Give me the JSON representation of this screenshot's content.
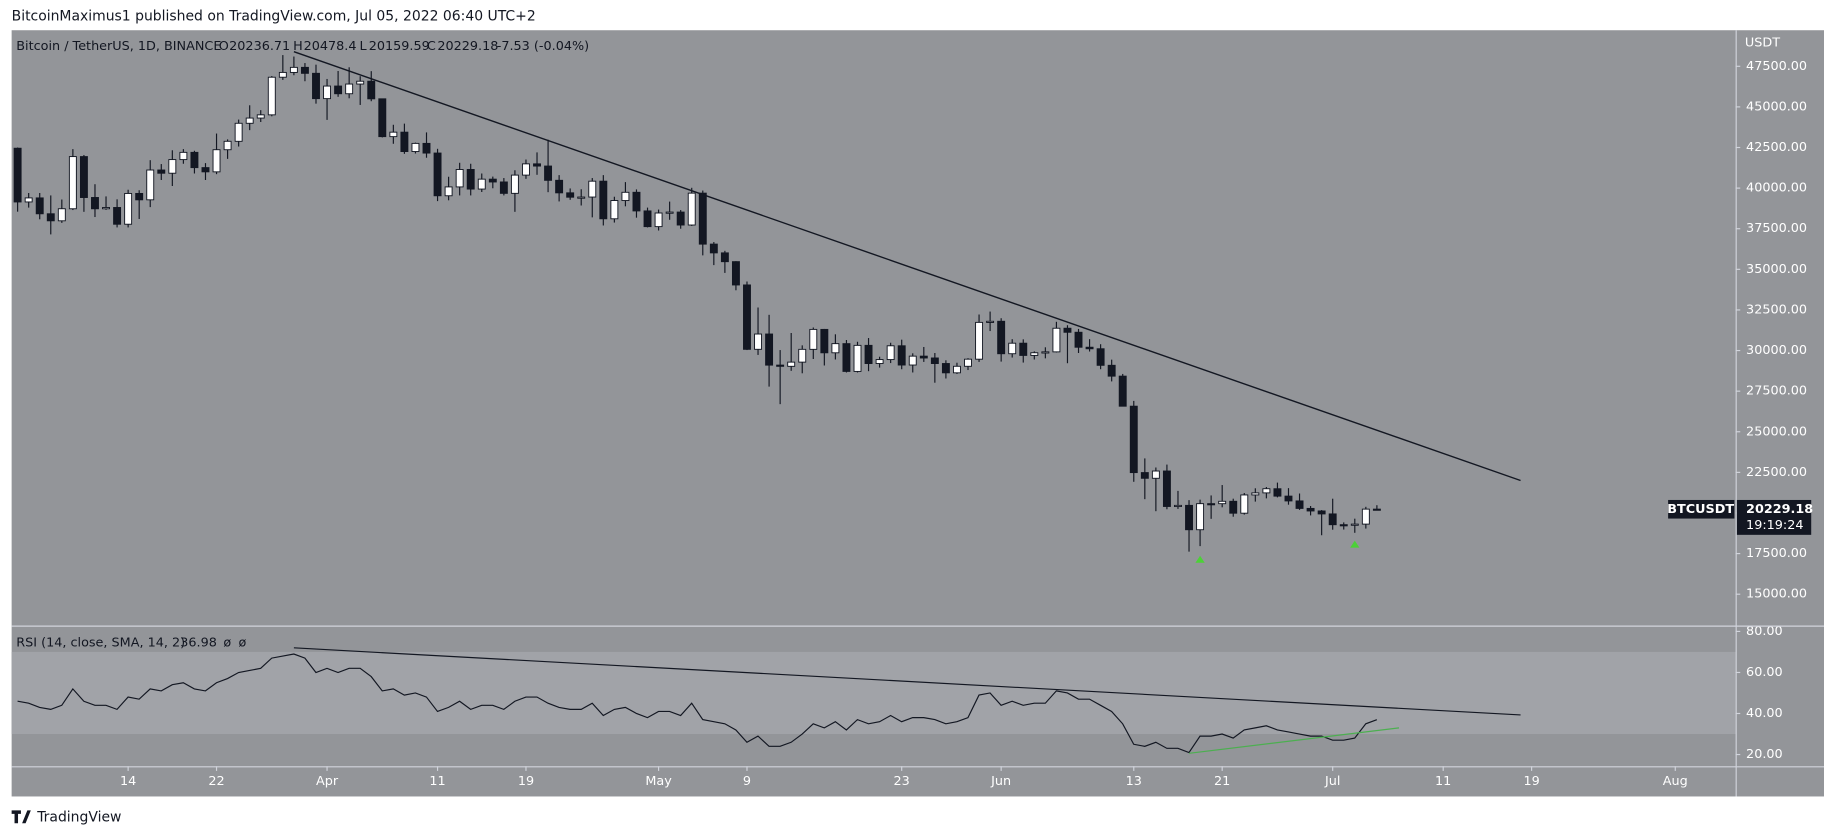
{
  "header": {
    "publisher": "BitcoinMaximus1 published on TradingView.com, Jul 05, 2022 06:40 UTC+2"
  },
  "footer": {
    "brand": "TradingView"
  },
  "chart_data": {
    "type": "candlestick",
    "title": "Bitcoin / TetherUS, 1D, BINANCE",
    "symbol": "BTCUSDT",
    "countdown": "19:19:24",
    "unit": "USDT",
    "ohlc_labels": [
      "O",
      "H",
      "L",
      "C"
    ],
    "change": -7.53,
    "change_percent": {
      "value": -0.04,
      "label": "(-0.04%)"
    },
    "up_color": "#ffffff",
    "down_color": "#131722",
    "background": "#939599",
    "x": [
      "2022-03-04",
      "2022-03-05",
      "2022-03-06",
      "2022-03-07",
      "2022-03-08",
      "2022-03-09",
      "2022-03-10",
      "2022-03-11",
      "2022-03-12",
      "2022-03-13",
      "2022-03-14",
      "2022-03-15",
      "2022-03-16",
      "2022-03-17",
      "2022-03-18",
      "2022-03-19",
      "2022-03-20",
      "2022-03-21",
      "2022-03-22",
      "2022-03-23",
      "2022-03-24",
      "2022-03-25",
      "2022-03-26",
      "2022-03-27",
      "2022-03-28",
      "2022-03-29",
      "2022-03-30",
      "2022-03-31",
      "2022-04-01",
      "2022-04-02",
      "2022-04-03",
      "2022-04-04",
      "2022-04-05",
      "2022-04-06",
      "2022-04-07",
      "2022-04-08",
      "2022-04-09",
      "2022-04-10",
      "2022-04-11",
      "2022-04-12",
      "2022-04-13",
      "2022-04-14",
      "2022-04-15",
      "2022-04-16",
      "2022-04-17",
      "2022-04-18",
      "2022-04-19",
      "2022-04-20",
      "2022-04-21",
      "2022-04-22",
      "2022-04-23",
      "2022-04-24",
      "2022-04-25",
      "2022-04-26",
      "2022-04-27",
      "2022-04-28",
      "2022-04-29",
      "2022-04-30",
      "2022-05-01",
      "2022-05-02",
      "2022-05-03",
      "2022-05-04",
      "2022-05-05",
      "2022-05-06",
      "2022-05-07",
      "2022-05-08",
      "2022-05-09",
      "2022-05-10",
      "2022-05-11",
      "2022-05-12",
      "2022-05-13",
      "2022-05-14",
      "2022-05-15",
      "2022-05-16",
      "2022-05-17",
      "2022-05-18",
      "2022-05-19",
      "2022-05-20",
      "2022-05-21",
      "2022-05-22",
      "2022-05-23",
      "2022-05-24",
      "2022-05-25",
      "2022-05-26",
      "2022-05-27",
      "2022-05-28",
      "2022-05-29",
      "2022-05-30",
      "2022-05-31",
      "2022-06-01",
      "2022-06-02",
      "2022-06-03",
      "2022-06-04",
      "2022-06-05",
      "2022-06-06",
      "2022-06-07",
      "2022-06-08",
      "2022-06-09",
      "2022-06-10",
      "2022-06-11",
      "2022-06-12",
      "2022-06-13",
      "2022-06-14",
      "2022-06-15",
      "2022-06-16",
      "2022-06-17",
      "2022-06-18",
      "2022-06-19",
      "2022-06-20",
      "2022-06-21",
      "2022-06-22",
      "2022-06-23",
      "2022-06-24",
      "2022-06-25",
      "2022-06-26",
      "2022-06-27",
      "2022-06-28",
      "2022-06-29",
      "2022-06-30",
      "2022-07-01",
      "2022-07-02",
      "2022-07-03",
      "2022-07-04",
      "2022-07-05"
    ],
    "open": [
      42455,
      39148,
      39397,
      38420,
      37988,
      38730,
      41941,
      39422,
      38729,
      38807,
      37777,
      39671,
      39280,
      41114,
      40917,
      41757,
      42201,
      41262,
      41002,
      42364,
      42882,
      43991,
      44313,
      44511,
      46827,
      47122,
      47434,
      47067,
      45510,
      46283,
      45811,
      46407,
      46580,
      45497,
      43170,
      43444,
      42252,
      42753,
      42158,
      39530,
      40074,
      41147,
      39942,
      40551,
      40378,
      39678,
      40801,
      41493,
      41358,
      40480,
      39709,
      39441,
      39450,
      40426,
      38112,
      39235,
      39742,
      38596,
      37630,
      38468,
      38525,
      37728,
      39690,
      36552,
      36013,
      35472,
      34038,
      30076,
      31017,
      29103,
      29029,
      29287,
      30074,
      31301,
      29862,
      30425,
      28715,
      30319,
      29201,
      29445,
      30293,
      29109,
      29655,
      29542,
      29201,
      28629,
      29031,
      29468,
      31734,
      31801,
      29805,
      30452,
      29700,
      29865,
      29919,
      31373,
      31125,
      30204,
      30110,
      29091,
      28424,
      26574,
      22487,
      22136,
      22583,
      20401,
      20468,
      18970,
      20574,
      20573,
      20719,
      19987,
      21110,
      21237,
      21492,
      21038,
      20742,
      20281,
      20124,
      19942,
      19279,
      19252,
      19315,
      20236.71
    ],
    "high": [
      42500,
      39700,
      39700,
      39550,
      39300,
      42400,
      42040,
      40240,
      39490,
      39310,
      39900,
      39870,
      41720,
      41480,
      42330,
      42400,
      42300,
      41540,
      43360,
      43000,
      44220,
      45100,
      44800,
      46900,
      48190,
      48100,
      47700,
      47600,
      46720,
      47210,
      47440,
      46890,
      47200,
      45510,
      43900,
      43970,
      42800,
      43430,
      42420,
      40700,
      41560,
      41500,
      40900,
      40710,
      40620,
      41100,
      41760,
      42200,
      42980,
      40800,
      39980,
      39930,
      40620,
      40800,
      39470,
      40370,
      39920,
      38800,
      38680,
      39170,
      38650,
      40020,
      39850,
      36680,
      36140,
      35500,
      34250,
      32650,
      32200,
      30030,
      31080,
      30320,
      31420,
      31330,
      31000,
      30650,
      30540,
      30770,
      29620,
      30480,
      30670,
      29830,
      30220,
      29850,
      29400,
      29250,
      29530,
      32220,
      32400,
      31990,
      30700,
      30690,
      29950,
      30200,
      31770,
      31560,
      31330,
      30700,
      30390,
      29440,
      28560,
      26900,
      23360,
      22800,
      22980,
      21360,
      20790,
      20820,
      21080,
      21720,
      20880,
      21230,
      21520,
      21600,
      21870,
      21530,
      21200,
      20430,
      20180,
      20880,
      19420,
      19650,
      20380,
      20478.4
    ],
    "low": [
      38550,
      38800,
      38080,
      37150,
      37860,
      38650,
      38540,
      38220,
      38660,
      37580,
      37580,
      38100,
      38830,
      40500,
      40130,
      41500,
      40900,
      40500,
      40860,
      41800,
      42560,
      43570,
      44070,
      44420,
      46660,
      46950,
      46580,
      45200,
      44200,
      45620,
      45530,
      45120,
      45350,
      43120,
      42730,
      42110,
      42130,
      41870,
      39200,
      39250,
      39550,
      39550,
      39760,
      39990,
      39550,
      38540,
      40570,
      40820,
      39750,
      39180,
      39280,
      38930,
      38200,
      37700,
      37880,
      38880,
      38180,
      37580,
      37390,
      38050,
      37500,
      37670,
      35860,
      35260,
      34780,
      33710,
      30030,
      29730,
      27780,
      26700,
      28750,
      28600,
      29480,
      29080,
      29450,
      28650,
      28650,
      28730,
      28950,
      29230,
      28850,
      28650,
      29300,
      28020,
      28280,
      28560,
      28800,
      29300,
      31200,
      29320,
      29570,
      29260,
      29450,
      29520,
      29880,
      29220,
      29850,
      29940,
      28850,
      28100,
      26560,
      21920,
      20850,
      20110,
      20230,
      20250,
      17620,
      17960,
      19640,
      20350,
      19770,
      19900,
      20700,
      20900,
      20960,
      20510,
      20190,
      19850,
      18630,
      18970,
      18980,
      18780,
      19040,
      20159.59
    ],
    "close": [
      39148,
      39397,
      38420,
      37988,
      38730,
      41941,
      39422,
      38729,
      38807,
      37777,
      39671,
      39280,
      41114,
      40917,
      41757,
      42201,
      41262,
      41002,
      42364,
      42882,
      43991,
      44313,
      44511,
      46827,
      47122,
      47434,
      47067,
      45510,
      46283,
      45811,
      46407,
      46580,
      45497,
      43170,
      43444,
      42252,
      42753,
      42158,
      39530,
      40074,
      41147,
      39942,
      40551,
      40378,
      39678,
      40801,
      41493,
      41358,
      40480,
      39709,
      39441,
      39450,
      40426,
      38112,
      39235,
      39742,
      38596,
      37630,
      38468,
      38525,
      37728,
      39690,
      36552,
      36013,
      35472,
      34038,
      30076,
      31017,
      29103,
      29029,
      29287,
      30074,
      31301,
      29862,
      30425,
      28715,
      30319,
      29201,
      29445,
      30293,
      29109,
      29655,
      29542,
      29201,
      28629,
      29031,
      29468,
      31734,
      31801,
      29805,
      30452,
      29700,
      29865,
      29919,
      31373,
      31125,
      30204,
      30110,
      29091,
      28424,
      26574,
      22487,
      22136,
      22583,
      20401,
      20468,
      18970,
      20574,
      20573,
      20719,
      19987,
      21110,
      21237,
      21492,
      21038,
      20742,
      20281,
      20124,
      19942,
      19279,
      19252,
      19315,
      20236.71,
      20229.18
    ],
    "xlim": [
      "2022-03-03T11:00",
      "2022-08-06T11:00"
    ],
    "xticks": [
      {
        "value": "2022-03-14",
        "label": "14"
      },
      {
        "value": "2022-03-22",
        "label": "22"
      },
      {
        "value": "2022-04-01",
        "label": "Apr"
      },
      {
        "value": "2022-04-11",
        "label": "11"
      },
      {
        "value": "2022-04-19",
        "label": "19"
      },
      {
        "value": "2022-05-01",
        "label": "May"
      },
      {
        "value": "2022-05-09",
        "label": "9"
      },
      {
        "value": "2022-05-23",
        "label": "23"
      },
      {
        "value": "2022-06-01",
        "label": "Jun"
      },
      {
        "value": "2022-06-13",
        "label": "13"
      },
      {
        "value": "2022-06-21",
        "label": "21"
      },
      {
        "value": "2022-07-01",
        "label": "Jul"
      },
      {
        "value": "2022-07-11",
        "label": "11"
      },
      {
        "value": "2022-07-19",
        "label": "19"
      },
      {
        "value": "2022-08-01",
        "label": "Aug"
      }
    ],
    "ylim": [
      13070,
      49720
    ],
    "yticks": [
      {
        "value": 15000,
        "label": "15000.00"
      },
      {
        "value": 17500,
        "label": "17500.00"
      },
      {
        "value": 20000,
        "label": "20000.00"
      },
      {
        "value": 22500,
        "label": "22500.00"
      },
      {
        "value": 25000,
        "label": "25000.00"
      },
      {
        "value": 27500,
        "label": "27500.00"
      },
      {
        "value": 30000,
        "label": "30000.00"
      },
      {
        "value": 32500,
        "label": "32500.00"
      },
      {
        "value": 35000,
        "label": "35000.00"
      },
      {
        "value": 37500,
        "label": "37500.00"
      },
      {
        "value": 40000,
        "label": "40000.00"
      },
      {
        "value": 42500,
        "label": "42500.00"
      },
      {
        "value": 45000,
        "label": "45000.00"
      },
      {
        "value": 47500,
        "label": "47500.00"
      }
    ],
    "trendlines": [
      {
        "x": [
          "2022-03-29",
          "2022-07-18"
        ],
        "y": [
          48400,
          22000
        ],
        "color": "#131722"
      }
    ],
    "markers": [
      {
        "x": "2022-06-19",
        "y": 17150,
        "color": "#4cd137"
      },
      {
        "x": "2022-07-03",
        "y": 18080,
        "color": "#4cd137"
      }
    ],
    "rsi": {
      "title": "RSI (14, close, SMA, 14, 2)",
      "na_labels": [
        "ø",
        "ø"
      ],
      "color": "#131722",
      "band": [
        30,
        70
      ],
      "band_color": "#a1a3a8",
      "values": [
        46,
        45,
        43,
        42,
        44,
        52,
        46,
        44,
        44,
        42,
        48,
        47,
        52,
        51,
        54,
        55,
        52,
        51,
        55,
        57,
        60,
        61,
        62,
        67,
        68,
        69,
        67,
        60,
        62,
        60,
        62,
        62,
        58,
        51,
        52,
        49,
        50,
        48,
        41,
        43,
        46,
        42,
        44,
        44,
        42,
        46,
        48,
        48,
        45,
        43,
        42,
        42,
        45,
        39,
        42,
        43,
        40,
        38,
        41,
        41,
        39,
        45,
        37,
        36,
        35,
        32,
        26,
        29,
        24,
        24,
        26,
        30,
        35,
        33,
        36,
        32,
        37,
        35,
        36,
        39,
        36,
        38,
        38,
        37,
        35,
        36,
        38,
        49,
        50,
        44,
        46,
        44,
        45,
        45,
        51,
        50,
        47,
        47,
        44,
        41,
        35,
        25,
        24,
        26,
        23,
        23,
        21,
        29,
        29,
        30,
        28,
        32,
        33,
        34,
        32,
        31,
        30,
        29,
        29,
        27,
        27,
        28,
        35,
        36.98
      ],
      "ylim": [
        14.3,
        82.3
      ],
      "yticks": [
        {
          "value": 20,
          "label": "20.00"
        },
        {
          "value": 40,
          "label": "40.00"
        },
        {
          "value": 60,
          "label": "60.00"
        },
        {
          "value": 80,
          "label": "80.00"
        }
      ],
      "trendlines": [
        {
          "x": [
            "2022-03-29",
            "2022-07-18"
          ],
          "y": [
            72,
            39.3
          ],
          "color": "#131722"
        },
        {
          "x": [
            "2022-06-18",
            "2022-07-07"
          ],
          "y": [
            20.6,
            33
          ],
          "color": "#4caf50"
        }
      ]
    }
  }
}
